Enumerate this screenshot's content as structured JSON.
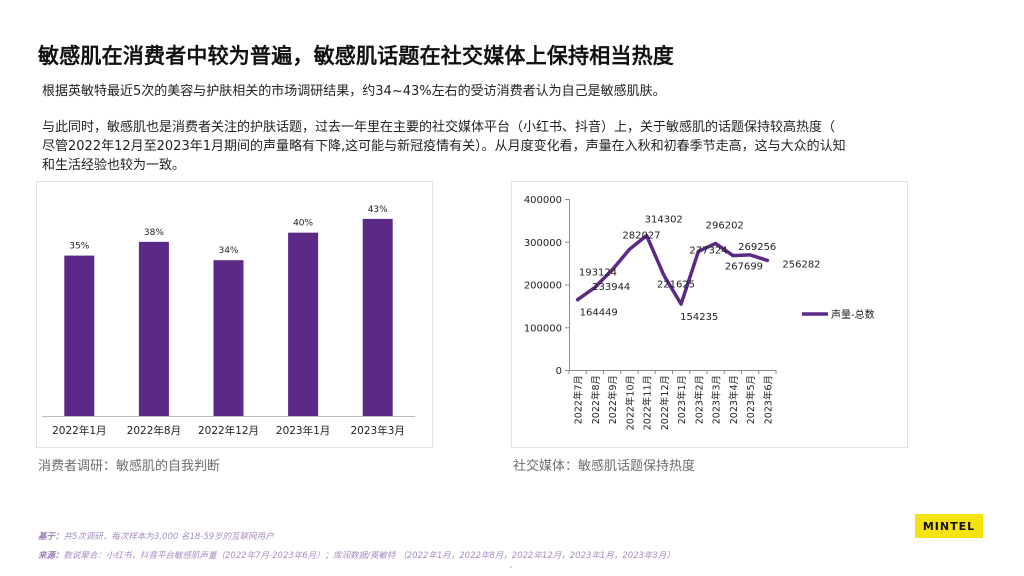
{
  "title": "敏感肌在消费者中较为普遍，敏感肌话题在社交媒体上保持相当热度",
  "paragraph1": "根据英敏特最近5次的美容与护肤相关的市场调研结果，约34~43%左右的受访消费者认为自己是敏感肌肤。",
  "paragraph2_lines": [
    "与此同时，敏感肌也是消费者关注的护肤话题，过去一年里在主要的社交媒体平台（小红书、抖音）上，关于敏感肌的话题保持较高热度（",
    "尽管2022年12月至2023年1月期间的声量略有下降,这可能与新冠疫情有关）。从月度变化看，声量在入秋和初春季节走高，这与大众的认知",
    "和生活经验也较为一致。"
  ],
  "captions": {
    "left": "消费者调研：敏感肌的自我判断",
    "right": "社交媒体：敏感肌话题保持热度"
  },
  "notes": {
    "basis_label": "基于：",
    "basis_text": "共5次调研，每次样本为3,000 名18-59岁的互联网用户",
    "source_label": "来源：",
    "source_text": "数说聚合：小红书，抖音平台敏感肌声量（2022年7月-2023年6月）；库润数据/英敏特 （2022年1月，2022年8月，2022年12月，2023年1月，2023年3月）"
  },
  "logo": "MINTEL",
  "colors": {
    "purple": "#5b2a86",
    "logo_yellow": "#f5e20e"
  },
  "chart_data": [
    {
      "type": "bar",
      "categories": [
        "2022年1月",
        "2022年8月",
        "2022年12月",
        "2023年1月",
        "2023年3月"
      ],
      "values": [
        35,
        38,
        34,
        40,
        43
      ],
      "value_labels": [
        "35%",
        "38%",
        "34%",
        "40%",
        "43%"
      ],
      "ylim": [
        0,
        48
      ],
      "unit": "%",
      "title": "",
      "xlabel": "",
      "ylabel": ""
    },
    {
      "type": "line",
      "categories": [
        "2022年7月",
        "2022年8月",
        "2022年9月",
        "2022年10月",
        "2022年11月",
        "2022年12月",
        "2023年1月",
        "2023年2月",
        "2023年3月",
        "2023年4月",
        "2023年5月",
        "2023年6月"
      ],
      "series": [
        {
          "name": "声量-总数",
          "values": [
            164449,
            193124,
            233944,
            282027,
            314302,
            221625,
            154235,
            277324,
            296202,
            267699,
            269256,
            256282
          ]
        }
      ],
      "yticks": [
        "400000",
        "300000",
        "200000",
        "100000",
        "0"
      ],
      "ylim": [
        0,
        400000
      ],
      "legend_position": "right",
      "title": "",
      "xlabel": "",
      "ylabel": ""
    }
  ]
}
